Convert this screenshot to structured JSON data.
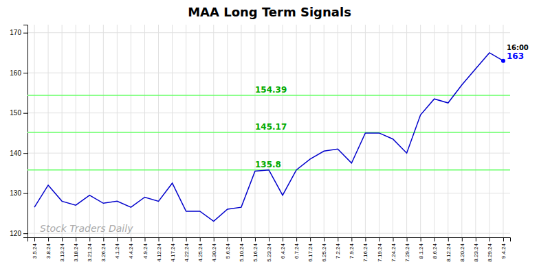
{
  "chart_data": {
    "type": "line",
    "title": "MAA Long Term Signals",
    "color": "#0000CC",
    "grid": true,
    "ylim": [
      119,
      172
    ],
    "yticks": [
      120,
      130,
      140,
      150,
      160,
      170
    ],
    "categories": [
      "3.5.24",
      "3.8.24",
      "3.13.24",
      "3.18.24",
      "3.21.24",
      "3.26.24",
      "4.1.24",
      "4.4.24",
      "4.9.24",
      "4.12.24",
      "4.17.24",
      "4.22.24",
      "4.25.24",
      "4.30.24",
      "5.6.24",
      "5.10.24",
      "5.16.24",
      "5.23.24",
      "6.4.24",
      "6.7.24",
      "6.17.24",
      "6.25.24",
      "7.2.24",
      "7.9.24",
      "7.16.24",
      "7.19.24",
      "7.24.24",
      "7.29.24",
      "8.1.24",
      "8.6.24",
      "8.12.24",
      "8.20.24",
      "8.23.24",
      "8.29.24",
      "9.4.24"
    ],
    "values": [
      126.5,
      132.0,
      128.0,
      127.0,
      129.5,
      127.5,
      128.0,
      126.5,
      129.0,
      128.0,
      132.5,
      125.5,
      125.5,
      123.0,
      126.0,
      126.5,
      135.5,
      135.8,
      129.5,
      135.8,
      138.5,
      140.5,
      141.0,
      137.5,
      145.0,
      145.0,
      143.5,
      140.0,
      149.5,
      153.5,
      152.5,
      157.0,
      161.0,
      165.0,
      163.0
    ],
    "reference_lines": [
      {
        "value": 135.8,
        "label": "135.8",
        "color": "#66ff66"
      },
      {
        "value": 145.17,
        "label": "145.17",
        "color": "#66ff66"
      },
      {
        "value": 154.39,
        "label": "154.39",
        "color": "#66ff66"
      }
    ],
    "end_point": {
      "color": "#0000FF",
      "labels": [
        "16:00",
        "163"
      ]
    },
    "watermark": "Stock Traders Daily"
  }
}
